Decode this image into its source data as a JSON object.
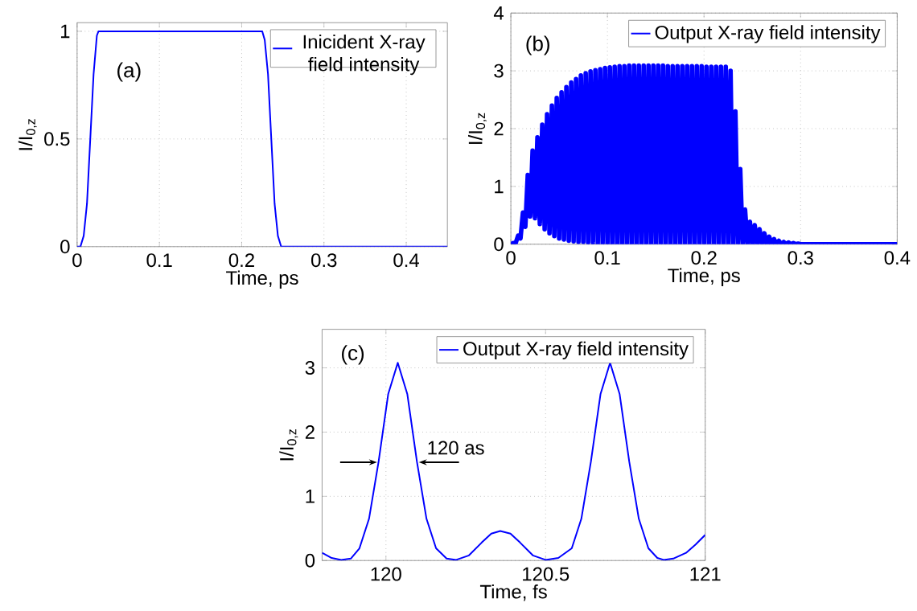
{
  "chart_data": [
    {
      "type": "line",
      "xlabel": "Time, ps",
      "ylabel": "I/I$_{0,z}$",
      "xlim": [
        0,
        0.45
      ],
      "ylim": [
        0,
        1.04
      ],
      "xticks": [
        0,
        0.1,
        0.2,
        0.3,
        0.4
      ],
      "yticks": [
        0,
        0.5,
        1
      ],
      "grid": true,
      "legend": "top right",
      "annotations": [
        "(a)"
      ],
      "series": [
        {
          "name": "Inicident X-ray field intensity",
          "color": "#0000ff",
          "x": [
            0,
            0.004,
            0.008,
            0.012,
            0.016,
            0.02,
            0.024,
            0.026,
            0.225,
            0.228,
            0.232,
            0.236,
            0.24,
            0.244,
            0.248,
            0.45
          ],
          "values": [
            0,
            0,
            0.05,
            0.2,
            0.5,
            0.8,
            0.98,
            1,
            1,
            0.96,
            0.8,
            0.5,
            0.2,
            0.05,
            0,
            0
          ]
        }
      ]
    },
    {
      "type": "line",
      "xlabel": "Time, ps",
      "ylabel": "I/I$_{0,z}$",
      "xlim": [
        0,
        0.4
      ],
      "ylim": [
        0,
        4
      ],
      "xticks": [
        0,
        0.1,
        0.2,
        0.3,
        0.4
      ],
      "yticks": [
        0,
        1,
        2,
        3,
        4
      ],
      "grid": true,
      "legend": "top right",
      "annotations": [
        "(b)"
      ],
      "series": [
        {
          "name": "Output X-ray field intensity",
          "color": "#0000ff",
          "x": [
            0,
            0.0025,
            0.005,
            0.0075,
            0.01,
            0.0125,
            0.015,
            0.0175,
            0.02,
            0.0225,
            0.025,
            0.0275,
            0.03,
            0.0325,
            0.035,
            0.0375,
            0.04,
            0.0425,
            0.045,
            0.0475,
            0.05,
            0.0525,
            0.055,
            0.0575,
            0.06,
            0.0625,
            0.065,
            0.0675,
            0.07,
            0.0725,
            0.075,
            0.0775,
            0.08,
            0.0825,
            0.085,
            0.0875,
            0.09,
            0.0925,
            0.095,
            0.0975,
            0.1,
            0.1025,
            0.105,
            0.1075,
            0.11,
            0.1125,
            0.115,
            0.1175,
            0.12,
            0.1225,
            0.125,
            0.1275,
            0.13,
            0.1325,
            0.135,
            0.1375,
            0.14,
            0.1425,
            0.145,
            0.1475,
            0.15,
            0.1525,
            0.155,
            0.1575,
            0.16,
            0.1625,
            0.165,
            0.1675,
            0.17,
            0.1725,
            0.175,
            0.1775,
            0.18,
            0.1825,
            0.185,
            0.1875,
            0.19,
            0.1925,
            0.195,
            0.1975,
            0.2,
            0.2025,
            0.205,
            0.2075,
            0.21,
            0.2125,
            0.215,
            0.2175,
            0.22,
            0.2225,
            0.225,
            0.2275,
            0.23,
            0.2325,
            0.235,
            0.2375,
            0.24,
            0.2425,
            0.245,
            0.2475,
            0.25,
            0.2525,
            0.255,
            0.2575,
            0.26,
            0.2625,
            0.265,
            0.2675,
            0.27,
            0.2725,
            0.275,
            0.2775,
            0.28,
            0.2825,
            0.285,
            0.2875,
            0.29,
            0.2925,
            0.295,
            0.2975,
            0.3,
            0.35,
            0.4
          ],
          "values": [
            0,
            0.02,
            0.02,
            0.15,
            0.1,
            0.55,
            0.3,
            1.2,
            0.48,
            1.62,
            0.45,
            1.85,
            0.35,
            2.07,
            0.26,
            2.25,
            0.19,
            2.4,
            0.14,
            2.53,
            0.1,
            2.63,
            0.08,
            2.72,
            0.06,
            2.8,
            0.05,
            2.86,
            0.04,
            2.92,
            0.04,
            2.96,
            0.03,
            2.99,
            0.03,
            3.01,
            0.02,
            3.03,
            0.02,
            3.05,
            0.01,
            3.06,
            0.01,
            3.07,
            0,
            3.08,
            0,
            3.08,
            0,
            3.09,
            0,
            3.09,
            0,
            3.09,
            0,
            3.09,
            0,
            3.09,
            0,
            3.09,
            0,
            3.09,
            0,
            3.09,
            0,
            3.08,
            0,
            3.08,
            0,
            3.08,
            0,
            3.08,
            0,
            3.08,
            0,
            3.08,
            0,
            3.08,
            0,
            3.08,
            0,
            3.07,
            0,
            3.07,
            0,
            3.07,
            0,
            3.07,
            0,
            3.07,
            0,
            3.0,
            0,
            2.3,
            0,
            1.3,
            0,
            0.6,
            0,
            0.39,
            0,
            0.33,
            0,
            0.26,
            0,
            0.19,
            0,
            0.13,
            0,
            0.09,
            0,
            0.06,
            0,
            0.04,
            0,
            0.03,
            0,
            0.02,
            0,
            0.01,
            0,
            0,
            0
          ]
        }
      ]
    },
    {
      "type": "line",
      "xlabel": "Time, fs",
      "ylabel": "I/I$_{0,z}$",
      "xlim": [
        119.8,
        121
      ],
      "ylim": [
        0,
        3.6
      ],
      "xticks": [
        120,
        120.5,
        121
      ],
      "yticks": [
        0,
        1,
        2,
        3
      ],
      "grid": true,
      "legend": "top right",
      "annotations": [
        "(c)",
        {
          "text": "120 as",
          "x": 120.103,
          "y": 1.53
        }
      ],
      "series": [
        {
          "name": "Output X-ray field intensity",
          "color": "#0000ff",
          "x": [
            119.8,
            119.83,
            119.86,
            119.89,
            119.917,
            119.947,
            119.977,
            120.007,
            120.037,
            120.067,
            120.097,
            120.127,
            120.157,
            120.19,
            120.22,
            120.26,
            120.3,
            120.33,
            120.358,
            120.39,
            120.42,
            120.46,
            120.5,
            120.54,
            120.582,
            120.612,
            120.642,
            120.672,
            120.702,
            120.732,
            120.762,
            120.792,
            120.822,
            120.85,
            120.87,
            120.9,
            120.94,
            120.97,
            121.0
          ],
          "values": [
            0.12,
            0.04,
            0.01,
            0.03,
            0.19,
            0.65,
            1.54,
            2.59,
            3.08,
            2.59,
            1.54,
            0.65,
            0.19,
            0.03,
            0.01,
            0.08,
            0.28,
            0.42,
            0.46,
            0.42,
            0.28,
            0.08,
            0.01,
            0.04,
            0.19,
            0.65,
            1.54,
            2.59,
            3.08,
            2.59,
            1.54,
            0.65,
            0.19,
            0.04,
            0.01,
            0.03,
            0.12,
            0.25,
            0.4
          ]
        }
      ]
    }
  ]
}
